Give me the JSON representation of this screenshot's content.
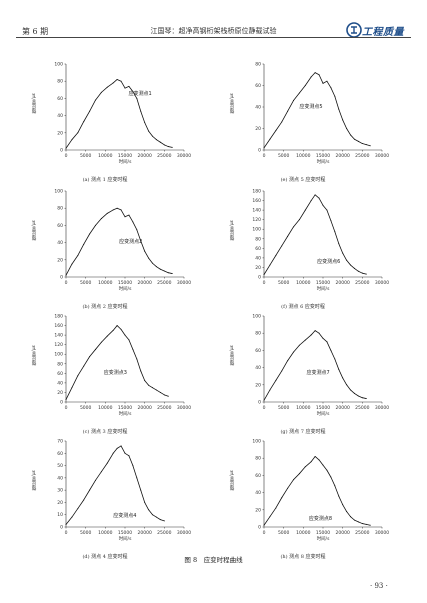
{
  "header": {
    "issue": "第 6 期",
    "running_title": "江国琴：超净高钢桁架栈桥原位静载试验",
    "logo_text": "工程质量"
  },
  "figure": {
    "caption": "图 8　应变时程曲线",
    "y_axis_label": "微应变/με",
    "x_axis_label": "时间/s"
  },
  "page_number": "· 93 ·",
  "chart_data": [
    {
      "id": "a",
      "type": "line",
      "caption": "(a) 测点 1 应变时程",
      "series_label": "应变测点1",
      "xlim": [
        0,
        30000
      ],
      "ylim": [
        0,
        100
      ],
      "xticks": [
        0,
        5000,
        10000,
        15000,
        20000,
        25000,
        30000
      ],
      "yticks": [
        0,
        20,
        40,
        60,
        80,
        100
      ],
      "x": [
        0,
        1500,
        3000,
        4500,
        6000,
        7500,
        9000,
        10500,
        12000,
        13000,
        14000,
        15000,
        16000,
        17000,
        18000,
        19000,
        20000,
        21000,
        22000,
        23000,
        24000,
        25000,
        26000,
        27000
      ],
      "y": [
        2,
        12,
        20,
        33,
        45,
        58,
        67,
        73,
        78,
        82,
        80,
        72,
        74,
        68,
        60,
        45,
        32,
        22,
        16,
        12,
        9,
        6,
        4,
        3
      ]
    },
    {
      "id": "e",
      "type": "line",
      "caption": "(e) 测点 5 应变时程",
      "series_label": "应变测点5",
      "xlim": [
        0,
        30000
      ],
      "ylim": [
        0,
        80
      ],
      "xticks": [
        0,
        5000,
        10000,
        15000,
        20000,
        25000,
        30000
      ],
      "yticks": [
        0,
        20,
        40,
        60,
        80
      ],
      "x": [
        0,
        1500,
        3000,
        4500,
        6000,
        7500,
        9000,
        10500,
        12000,
        13000,
        14000,
        15000,
        16000,
        17000,
        18000,
        19000,
        20000,
        21000,
        22000,
        23000,
        24000,
        25000,
        26000,
        27000
      ],
      "y": [
        2,
        10,
        18,
        26,
        36,
        46,
        53,
        60,
        68,
        72,
        70,
        62,
        64,
        58,
        50,
        38,
        28,
        20,
        14,
        10,
        8,
        6,
        5,
        4
      ]
    },
    {
      "id": "b",
      "type": "line",
      "caption": "(b) 测点 2 应变时程",
      "series_label": "应变测点2",
      "xlim": [
        0,
        30000
      ],
      "ylim": [
        0,
        100
      ],
      "xticks": [
        0,
        5000,
        10000,
        15000,
        20000,
        25000,
        30000
      ],
      "yticks": [
        0,
        20,
        40,
        60,
        80,
        100
      ],
      "x": [
        0,
        1500,
        3000,
        4500,
        6000,
        7500,
        9000,
        10500,
        12000,
        13000,
        14000,
        15000,
        16000,
        17000,
        18000,
        19000,
        20000,
        21000,
        22000,
        23000,
        24000,
        25000,
        26000,
        27000
      ],
      "y": [
        2,
        15,
        25,
        38,
        50,
        60,
        68,
        74,
        78,
        80,
        78,
        70,
        72,
        64,
        55,
        42,
        30,
        22,
        16,
        12,
        9,
        7,
        5,
        4
      ]
    },
    {
      "id": "f",
      "type": "line",
      "caption": "(f) 测点 6 应变时程",
      "series_label": "应变测点6",
      "xlim": [
        0,
        30000
      ],
      "ylim": [
        0,
        180
      ],
      "xticks": [
        0,
        5000,
        10000,
        15000,
        20000,
        25000,
        30000
      ],
      "yticks": [
        0,
        20,
        40,
        60,
        80,
        100,
        120,
        140,
        160,
        180
      ],
      "x": [
        0,
        1500,
        3000,
        4500,
        6000,
        7500,
        9000,
        10500,
        12000,
        13000,
        14000,
        15000,
        16000,
        17000,
        18000,
        19000,
        20000,
        21000,
        22000,
        23000,
        24000,
        25000,
        26000
      ],
      "y": [
        5,
        25,
        45,
        65,
        85,
        105,
        120,
        140,
        160,
        172,
        165,
        150,
        140,
        118,
        95,
        70,
        50,
        35,
        25,
        18,
        12,
        8,
        6
      ]
    },
    {
      "id": "c",
      "type": "line",
      "caption": "(c) 测点 3 应变时程",
      "series_label": "应变测点3",
      "xlim": [
        0,
        30000
      ],
      "ylim": [
        0,
        180
      ],
      "xticks": [
        0,
        5000,
        10000,
        15000,
        20000,
        25000,
        30000
      ],
      "yticks": [
        0,
        20,
        40,
        60,
        80,
        100,
        120,
        140,
        160,
        180
      ],
      "x": [
        0,
        1500,
        3000,
        4500,
        6000,
        7500,
        9000,
        10500,
        12000,
        13000,
        14000,
        15000,
        16000,
        17000,
        18000,
        19000,
        20000,
        21000,
        22000,
        23000,
        24000,
        25000,
        26000
      ],
      "y": [
        5,
        30,
        55,
        75,
        95,
        110,
        125,
        138,
        150,
        160,
        152,
        140,
        130,
        110,
        90,
        65,
        45,
        35,
        30,
        25,
        20,
        15,
        12
      ]
    },
    {
      "id": "g",
      "type": "line",
      "caption": "(g) 测点 7 应变时程",
      "series_label": "应变测点7",
      "xlim": [
        0,
        30000
      ],
      "ylim": [
        0,
        100
      ],
      "xticks": [
        0,
        5000,
        10000,
        15000,
        20000,
        25000,
        30000
      ],
      "yticks": [
        0,
        20,
        40,
        60,
        80,
        100
      ],
      "x": [
        0,
        1500,
        3000,
        4500,
        6000,
        7500,
        9000,
        10500,
        12000,
        13000,
        14000,
        15000,
        16000,
        17000,
        18000,
        19000,
        20000,
        21000,
        22000,
        23000,
        24000,
        25000,
        26000
      ],
      "y": [
        2,
        14,
        25,
        36,
        48,
        58,
        66,
        72,
        78,
        83,
        80,
        74,
        70,
        60,
        50,
        38,
        28,
        20,
        14,
        10,
        7,
        5,
        4
      ]
    },
    {
      "id": "d",
      "type": "line",
      "caption": "(d) 测点 4 应变时程",
      "series_label": "应变测点4",
      "xlim": [
        0,
        30000
      ],
      "ylim": [
        0,
        70
      ],
      "xticks": [
        0,
        5000,
        10000,
        15000,
        20000,
        25000,
        30000
      ],
      "yticks": [
        0,
        10,
        20,
        30,
        40,
        50,
        60,
        70
      ],
      "x": [
        0,
        1500,
        3000,
        4500,
        6000,
        7500,
        9000,
        10500,
        12000,
        13000,
        14000,
        15000,
        16000,
        17000,
        18000,
        19000,
        20000,
        21000,
        22000,
        23000,
        24000,
        25000
      ],
      "y": [
        2,
        8,
        15,
        22,
        30,
        38,
        45,
        52,
        60,
        64,
        66,
        60,
        58,
        50,
        40,
        30,
        20,
        14,
        10,
        8,
        6,
        5
      ]
    },
    {
      "id": "h",
      "type": "line",
      "caption": "(h) 测点 8 应变时程",
      "series_label": "应变测点8",
      "xlim": [
        0,
        30000
      ],
      "ylim": [
        0,
        100
      ],
      "xticks": [
        0,
        5000,
        10000,
        15000,
        20000,
        25000,
        30000
      ],
      "yticks": [
        0,
        20,
        40,
        60,
        80,
        100
      ],
      "x": [
        0,
        1500,
        3000,
        4500,
        6000,
        7500,
        9000,
        10500,
        12000,
        13000,
        14000,
        15000,
        16000,
        17000,
        18000,
        19000,
        20000,
        21000,
        22000,
        23000,
        24000,
        25000,
        26000,
        27000
      ],
      "y": [
        2,
        12,
        22,
        34,
        45,
        55,
        62,
        70,
        76,
        82,
        78,
        72,
        66,
        58,
        48,
        36,
        26,
        18,
        12,
        8,
        6,
        4,
        3,
        2
      ]
    }
  ]
}
